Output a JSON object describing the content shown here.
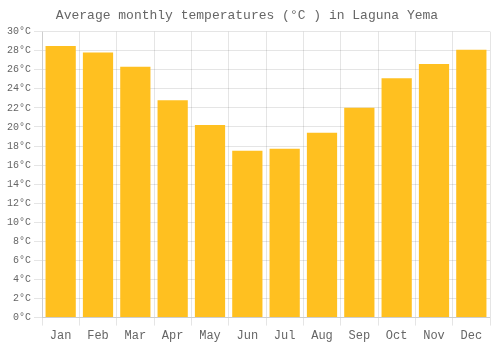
{
  "chart_data": {
    "type": "bar",
    "title": "Average monthly temperatures (°C ) in Laguna Yema",
    "categories": [
      "Jan",
      "Feb",
      "Mar",
      "Apr",
      "May",
      "Jun",
      "Jul",
      "Aug",
      "Sep",
      "Oct",
      "Nov",
      "Dec"
    ],
    "values": [
      28.5,
      27.8,
      26.3,
      22.8,
      20.2,
      17.5,
      17.7,
      19.4,
      22.0,
      25.1,
      26.6,
      28.1
    ],
    "color": "#FFC020",
    "ylim": [
      0,
      30
    ],
    "yticks": [
      {
        "value": 0,
        "label": "0°C"
      },
      {
        "value": 2,
        "label": "2°C"
      },
      {
        "value": 4,
        "label": "4°C"
      },
      {
        "value": 6,
        "label": "6°C"
      },
      {
        "value": 8,
        "label": "8°C"
      },
      {
        "value": 10,
        "label": "10°C"
      },
      {
        "value": 12,
        "label": "12°C"
      },
      {
        "value": 14,
        "label": "14°C"
      },
      {
        "value": 16,
        "label": "16°C"
      },
      {
        "value": 18,
        "label": "18°C"
      },
      {
        "value": 20,
        "label": "20°C"
      },
      {
        "value": 22,
        "label": "22°C"
      },
      {
        "value": 24,
        "label": "24°C"
      },
      {
        "value": 26,
        "label": "26°C"
      },
      {
        "value": 28,
        "label": "28°C"
      },
      {
        "value": 30,
        "label": "30°C"
      }
    ],
    "grid": true
  }
}
